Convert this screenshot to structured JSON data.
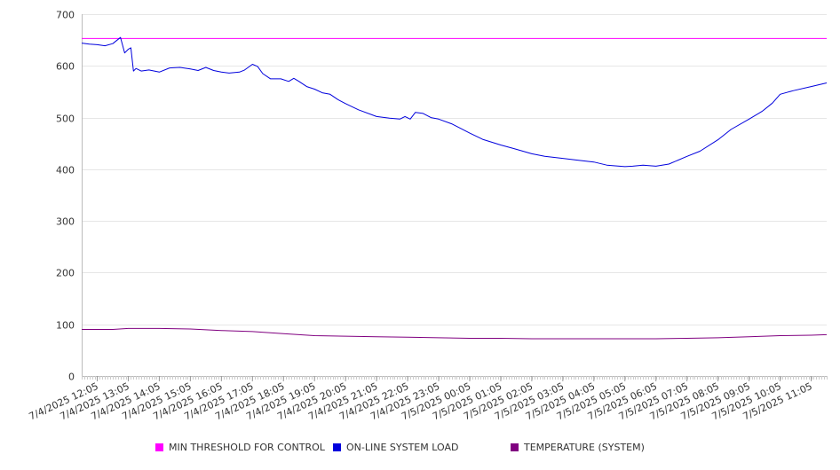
{
  "chart_data": {
    "type": "line",
    "title": "",
    "xlabel": "",
    "ylabel": "",
    "ylim": [
      0,
      700
    ],
    "yticks": [
      0,
      100,
      200,
      300,
      400,
      500,
      600,
      700
    ],
    "grid": "horizontal",
    "legend_position": "bottom",
    "x_tick_labels": [
      "7/4/2025 12:05",
      "7/4/2025 13:05",
      "7/4/2025 14:05",
      "7/4/2025 15:05",
      "7/4/2025 16:05",
      "7/4/2025 17:05",
      "7/4/2025 18:05",
      "7/4/2025 19:05",
      "7/4/2025 20:05",
      "7/4/2025 21:05",
      "7/4/2025 22:05",
      "7/4/2025 23:05",
      "7/5/2025 00:05",
      "7/5/2025 01:05",
      "7/5/2025 02:05",
      "7/5/2025 03:05",
      "7/5/2025 04:05",
      "7/5/2025 05:05",
      "7/5/2025 06:05",
      "7/5/2025 07:05",
      "7/5/2025 08:05",
      "7/5/2025 09:05",
      "7/5/2025 10:05",
      "7/5/2025 11:05"
    ],
    "x_range": [
      "7/4/2025 11:35",
      "7/5/2025 11:35"
    ],
    "series": [
      {
        "name": "MIN THRESHOLD FOR CONTROL",
        "color": "#ff00ff",
        "points": [
          [
            "7/4/2025 11:35",
            653
          ],
          [
            "7/5/2025 11:35",
            653
          ]
        ]
      },
      {
        "name": "ON-LINE SYSTEM LOAD",
        "color": "#0000dd",
        "points": [
          [
            "7/4/2025 11:35",
            644
          ],
          [
            "7/4/2025 11:50",
            642
          ],
          [
            "7/4/2025 12:05",
            641
          ],
          [
            "7/4/2025 12:20",
            639
          ],
          [
            "7/4/2025 12:35",
            643
          ],
          [
            "7/4/2025 12:50",
            655
          ],
          [
            "7/4/2025 12:58",
            625
          ],
          [
            "7/4/2025 13:05",
            632
          ],
          [
            "7/4/2025 13:10",
            635
          ],
          [
            "7/4/2025 13:15",
            590
          ],
          [
            "7/4/2025 13:20",
            595
          ],
          [
            "7/4/2025 13:30",
            590
          ],
          [
            "7/4/2025 13:45",
            592
          ],
          [
            "7/4/2025 14:05",
            588
          ],
          [
            "7/4/2025 14:25",
            596
          ],
          [
            "7/4/2025 14:45",
            597
          ],
          [
            "7/4/2025 15:05",
            594
          ],
          [
            "7/4/2025 15:20",
            591
          ],
          [
            "7/4/2025 15:35",
            597
          ],
          [
            "7/4/2025 15:50",
            591
          ],
          [
            "7/4/2025 16:05",
            588
          ],
          [
            "7/4/2025 16:20",
            586
          ],
          [
            "7/4/2025 16:40",
            588
          ],
          [
            "7/4/2025 16:50",
            592
          ],
          [
            "7/4/2025 17:05",
            603
          ],
          [
            "7/4/2025 17:15",
            599
          ],
          [
            "7/4/2025 17:25",
            585
          ],
          [
            "7/4/2025 17:40",
            575
          ],
          [
            "7/4/2025 18:00",
            575
          ],
          [
            "7/4/2025 18:15",
            570
          ],
          [
            "7/4/2025 18:25",
            576
          ],
          [
            "7/4/2025 18:35",
            570
          ],
          [
            "7/4/2025 18:50",
            560
          ],
          [
            "7/4/2025 19:05",
            555
          ],
          [
            "7/4/2025 19:20",
            548
          ],
          [
            "7/4/2025 19:35",
            545
          ],
          [
            "7/4/2025 19:50",
            535
          ],
          [
            "7/4/2025 20:05",
            527
          ],
          [
            "7/4/2025 20:30",
            515
          ],
          [
            "7/4/2025 21:05",
            502
          ],
          [
            "7/4/2025 21:30",
            499
          ],
          [
            "7/4/2025 21:50",
            497
          ],
          [
            "7/4/2025 22:00",
            502
          ],
          [
            "7/4/2025 22:10",
            497
          ],
          [
            "7/4/2025 22:20",
            510
          ],
          [
            "7/4/2025 22:35",
            508
          ],
          [
            "7/4/2025 22:50",
            500
          ],
          [
            "7/4/2025 23:05",
            497
          ],
          [
            "7/4/2025 23:30",
            488
          ],
          [
            "7/5/2025 00:05",
            470
          ],
          [
            "7/5/2025 00:30",
            458
          ],
          [
            "7/5/2025 01:05",
            447
          ],
          [
            "7/5/2025 01:30",
            440
          ],
          [
            "7/5/2025 02:05",
            430
          ],
          [
            "7/5/2025 02:30",
            425
          ],
          [
            "7/5/2025 03:05",
            421
          ],
          [
            "7/5/2025 03:30",
            418
          ],
          [
            "7/5/2025 04:05",
            414
          ],
          [
            "7/5/2025 04:30",
            408
          ],
          [
            "7/5/2025 05:05",
            405
          ],
          [
            "7/5/2025 05:20",
            406
          ],
          [
            "7/5/2025 05:40",
            408
          ],
          [
            "7/5/2025 06:05",
            406
          ],
          [
            "7/5/2025 06:30",
            410
          ],
          [
            "7/5/2025 07:05",
            425
          ],
          [
            "7/5/2025 07:30",
            435
          ],
          [
            "7/5/2025 08:05",
            457
          ],
          [
            "7/5/2025 08:30",
            477
          ],
          [
            "7/5/2025 09:05",
            497
          ],
          [
            "7/5/2025 09:30",
            512
          ],
          [
            "7/5/2025 09:50",
            528
          ],
          [
            "7/5/2025 10:05",
            545
          ],
          [
            "7/5/2025 10:30",
            552
          ],
          [
            "7/5/2025 11:05",
            560
          ],
          [
            "7/5/2025 11:35",
            567
          ]
        ]
      },
      {
        "name": "TEMPERATURE (SYSTEM)",
        "color": "#800080",
        "points": [
          [
            "7/4/2025 11:35",
            90
          ],
          [
            "7/4/2025 12:35",
            90
          ],
          [
            "7/4/2025 13:05",
            92
          ],
          [
            "7/4/2025 14:05",
            92
          ],
          [
            "7/4/2025 15:05",
            91
          ],
          [
            "7/4/2025 16:05",
            88
          ],
          [
            "7/4/2025 17:05",
            86
          ],
          [
            "7/4/2025 18:05",
            82
          ],
          [
            "7/4/2025 19:05",
            78
          ],
          [
            "7/4/2025 20:05",
            77
          ],
          [
            "7/4/2025 21:05",
            76
          ],
          [
            "7/4/2025 22:05",
            75
          ],
          [
            "7/4/2025 23:05",
            74
          ],
          [
            "7/5/2025 00:05",
            73
          ],
          [
            "7/5/2025 01:05",
            73
          ],
          [
            "7/5/2025 02:05",
            72
          ],
          [
            "7/5/2025 03:05",
            72
          ],
          [
            "7/5/2025 04:05",
            72
          ],
          [
            "7/5/2025 05:05",
            72
          ],
          [
            "7/5/2025 06:05",
            72
          ],
          [
            "7/5/2025 07:05",
            73
          ],
          [
            "7/5/2025 08:05",
            74
          ],
          [
            "7/5/2025 09:05",
            76
          ],
          [
            "7/5/2025 10:05",
            78
          ],
          [
            "7/5/2025 11:05",
            79
          ],
          [
            "7/5/2025 11:35",
            80
          ]
        ]
      }
    ]
  }
}
